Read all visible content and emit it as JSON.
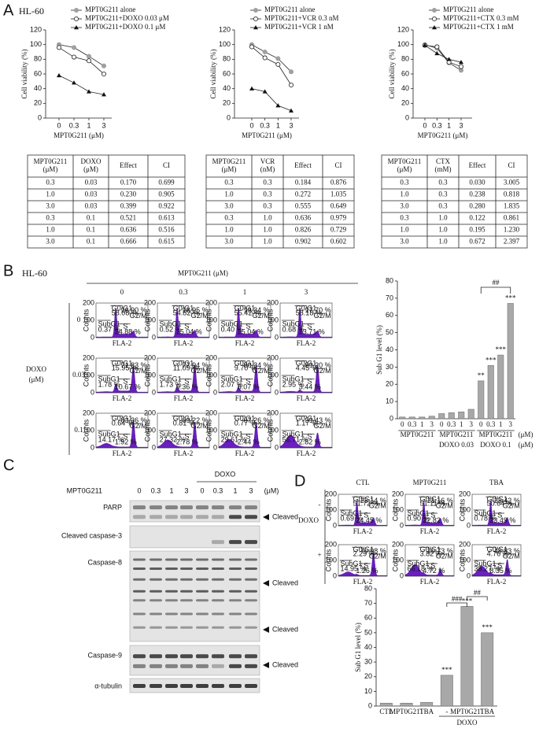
{
  "panel_labels": [
    "A",
    "B",
    "C",
    "D"
  ],
  "cell_line": "HL-60",
  "chart_data": [
    {
      "type": "line",
      "categories": [
        "0",
        "0.3",
        "1",
        "3"
      ],
      "xlabel": "MPT0G211 (μM)",
      "ylabel": "Cell viability (%)",
      "ylim": [
        0,
        120
      ],
      "yticks": [
        0,
        20,
        40,
        60,
        80,
        100,
        120
      ],
      "series": [
        {
          "name": "MPT0G211 alone",
          "color": "#a0a0a0",
          "marker": "circle",
          "values": [
            100,
            96,
            84,
            71
          ]
        },
        {
          "name": "MPT0G211+DOXO 0.03 μM",
          "color": "#333333",
          "marker": "open-circle",
          "values": [
            96,
            83,
            78,
            60
          ]
        },
        {
          "name": "MPT0G211+DOXO 0.1 μM",
          "color": "#111111",
          "marker": "triangle",
          "values": [
            58,
            48,
            36,
            32
          ]
        }
      ]
    },
    {
      "type": "line",
      "categories": [
        "0",
        "0.3",
        "1",
        "3"
      ],
      "xlabel": "MPT0G211 (μM)",
      "ylabel": "Cell viability (%)",
      "ylim": [
        0,
        120
      ],
      "yticks": [
        0,
        20,
        40,
        60,
        80,
        100,
        120
      ],
      "series": [
        {
          "name": "MPT0G211 alone",
          "color": "#a0a0a0",
          "marker": "circle",
          "values": [
            100,
            90,
            81,
            63
          ]
        },
        {
          "name": "MPT0G211+VCR 0.3 nM",
          "color": "#333333",
          "marker": "open-circle",
          "values": [
            97,
            82,
            73,
            45
          ]
        },
        {
          "name": "MPT0G211+VCR 1 nM",
          "color": "#111111",
          "marker": "triangle",
          "values": [
            40,
            36,
            17,
            10
          ]
        }
      ]
    },
    {
      "type": "line",
      "categories": [
        "0",
        "0.3",
        "1",
        "3"
      ],
      "xlabel": "MPT0G211 (μM)",
      "ylabel": "Cell viability (%)",
      "ylim": [
        0,
        120
      ],
      "yticks": [
        0,
        20,
        40,
        60,
        80,
        100,
        120
      ],
      "series": [
        {
          "name": "MPT0G211 alone",
          "color": "#a0a0a0",
          "marker": "circle",
          "values": [
            100,
            95,
            75,
            65
          ]
        },
        {
          "name": "MPT0G211+CTX  0.3 mM",
          "color": "#333333",
          "marker": "open-circle",
          "values": [
            99,
            97,
            76,
            70
          ]
        },
        {
          "name": "MPT0G211+CTX  1 mM",
          "color": "#111111",
          "marker": "triangle",
          "values": [
            99,
            88,
            80,
            76
          ]
        }
      ]
    },
    {
      "type": "bar",
      "ylabel": "Sub G1 level (%)",
      "color": "#a8a8a8",
      "categories": [
        "0",
        "0.3",
        "1",
        "3",
        "0",
        "0.3",
        "1",
        "3",
        "0",
        "0.3",
        "1",
        "3"
      ],
      "values": [
        1,
        1,
        1,
        1.5,
        3,
        3.5,
        4,
        5.5,
        22,
        31,
        37,
        67
      ],
      "significance": [
        null,
        null,
        null,
        null,
        null,
        null,
        null,
        null,
        "**",
        "***",
        "***",
        "***"
      ],
      "brackets": [
        "##"
      ],
      "ylim": [
        0,
        80
      ],
      "yticks": [
        0,
        10,
        20,
        30,
        40,
        50,
        60,
        70,
        80
      ],
      "group_labels": [
        "MPT0G211",
        "MPT0G211",
        "MPT0G211"
      ],
      "group_sublabels": [
        "DOXO 0.03",
        "DOXO 0.1"
      ],
      "unit_label": "(μM)"
    },
    {
      "type": "bar",
      "ylabel": "Sub G1 level (%)",
      "color": "#a8a8a8",
      "categories": [
        "CTL",
        "MPT0G211",
        "TBA",
        "-",
        "MPT0G211",
        "TBA"
      ],
      "values": [
        2,
        2,
        2.5,
        21,
        68,
        50
      ],
      "significance": [
        null,
        null,
        null,
        "***",
        "***",
        "***"
      ],
      "brackets": [
        "###",
        "##"
      ],
      "ylim": [
        0,
        80
      ],
      "yticks": [
        0,
        10,
        20,
        30,
        40,
        50,
        60,
        70,
        80
      ],
      "group_label": "DOXO"
    }
  ],
  "tables": [
    {
      "header": [
        [
          "MPT0G211",
          "(μM)"
        ],
        [
          "DOXO",
          "(μM)"
        ],
        [
          "Effect"
        ],
        [
          "CI"
        ]
      ],
      "rows": [
        [
          "0.3",
          "0.03",
          "0.170",
          "0.699"
        ],
        [
          "1.0",
          "0.03",
          "0.230",
          "0.905"
        ],
        [
          "3.0",
          "0.03",
          "0.399",
          "0.922"
        ],
        [
          "0.3",
          "0.1",
          "0.521",
          "0.613"
        ],
        [
          "1.0",
          "0.1",
          "0.636",
          "0.516"
        ],
        [
          "3.0",
          "0.1",
          "0.666",
          "0.615"
        ]
      ]
    },
    {
      "header": [
        [
          "MPT0G211",
          "(μM)"
        ],
        [
          "VCR",
          "(nM)"
        ],
        [
          "Effect"
        ],
        [
          "CI"
        ]
      ],
      "rows": [
        [
          "0.3",
          "0.3",
          "0.184",
          "0.876"
        ],
        [
          "1.0",
          "0.3",
          "0.272",
          "1.035"
        ],
        [
          "3.0",
          "0.3",
          "0.555",
          "0.649"
        ],
        [
          "0.3",
          "1.0",
          "0.636",
          "0.979"
        ],
        [
          "1.0",
          "1.0",
          "0.826",
          "0.729"
        ],
        [
          "3.0",
          "1.0",
          "0.902",
          "0.602"
        ]
      ]
    },
    {
      "header": [
        [
          "MPT0G211",
          "(μM)"
        ],
        [
          "CTX",
          "(mM)"
        ],
        [
          "Effect"
        ],
        [
          "CI"
        ]
      ],
      "rows": [
        [
          "0.3",
          "0.3",
          "0.030",
          "3.005"
        ],
        [
          "1.0",
          "0.3",
          "0.238",
          "0.818"
        ],
        [
          "3.0",
          "0.3",
          "0.280",
          "1.835"
        ],
        [
          "0.3",
          "1.0",
          "0.122",
          "0.861"
        ],
        [
          "1.0",
          "1.0",
          "0.195",
          "1.230"
        ],
        [
          "3.0",
          "1.0",
          "0.672",
          "2.397"
        ]
      ]
    }
  ],
  "flow": {
    "labels": {
      "counts": "Counts",
      "axis": "FLA-2",
      "ticks": [
        "200",
        "100",
        "0"
      ],
      "subg1": "SubG1",
      "g0g1": "G0/G1",
      "s": "S",
      "g2m": "G2/M"
    },
    "b": {
      "title": "MPT0G211 (μM)",
      "columns": [
        "0",
        "0.3",
        "1",
        "3"
      ],
      "row_title": [
        "DOXO",
        "(μM)"
      ],
      "rows": [
        "0",
        "0.03",
        "0.1"
      ],
      "plots": [
        [
          {
            "subg1": "0.37 %",
            "g0g1": "58.08 %",
            "s": "24.88 %",
            "g2m": "16.90 %"
          },
          {
            "subg1": "0.52 %",
            "g0g1": "54.82 %",
            "s": "25.04 %",
            "g2m": "18.95 %"
          },
          {
            "subg1": "0.40 %",
            "g0g1": "55.42 %",
            "s": "25.04 %",
            "g2m": "19.34 %"
          },
          {
            "subg1": "0.68 %",
            "g0g1": "58.18 %",
            "s": "23.71 %",
            "g2m": "17.70 %"
          }
        ],
        [
          {
            "subg1": "1.78 %",
            "g0g1": "15.95 %",
            "s": "10.67 %",
            "g2m": "71.83 %"
          },
          {
            "subg1": "1.73 %",
            "g0g1": "11.09 %",
            "s": "9.36 %",
            "g2m": "77.94 %"
          },
          {
            "subg1": "2.07 %",
            "g0g1": "9.70 %",
            "s": "8.07 %",
            "g2m": "80.34 %"
          },
          {
            "subg1": "2.95 %",
            "g0g1": "4.45 %",
            "s": "3.44 %",
            "g2m": "89.20 %"
          }
        ],
        [
          {
            "subg1": "14.17 %",
            "g0g1": "0.64 %",
            "s": "1.92 %",
            "g2m": "83.36 %"
          },
          {
            "subg1": "27.32 %",
            "g0g1": "0.81 %",
            "s": "2.78 %",
            "g2m": "69.22 %"
          },
          {
            "subg1": "29.61 %",
            "g0g1": "0.77 %",
            "s": "2.44 %",
            "g2m": "67.26 %"
          },
          {
            "subg1": "56.71 %",
            "g0g1": "1.17 %",
            "s": "2.82 %",
            "g2m": "39.43 %"
          }
        ]
      ]
    },
    "d": {
      "columns": [
        "CTL",
        "MPT0G211",
        "TBA"
      ],
      "row_title": "DOXO",
      "rows": [
        "-",
        "+"
      ],
      "plots": [
        [
          {
            "subg1": "0.69 %",
            "g0g1": "51.72 %",
            "s": "24.45 %",
            "g2m": "23.14 %"
          },
          {
            "subg1": "0.90 %",
            "g0g1": "51.11 %",
            "s": "22.82 %",
            "g2m": "21.16 %"
          },
          {
            "subg1": "0.78 %",
            "g0g1": "50.64 %",
            "s": "23.49 %",
            "g2m": "23.42 %"
          }
        ],
        [
          {
            "subg1": "14.95 %",
            "g0g1": "2.29 %",
            "s": "1.26 %",
            "g2m": "70.98 %"
          },
          {
            "subg1": "66.18 %",
            "g0g1": "3.82 %",
            "s": "4.72 %",
            "g2m": "20.73 %"
          },
          {
            "subg1": "38.27 %",
            "g0g1": "4.76 %",
            "s": "8.35 %",
            "g2m": "48.83 %"
          }
        ]
      ]
    }
  },
  "blot": {
    "treatment": "MPT0G211",
    "lanes": [
      "0",
      "0.3",
      "1",
      "3",
      "0",
      "0.3",
      "1",
      "3"
    ],
    "group": "DOXO",
    "unit": "(μM)",
    "proteins": [
      "PARP",
      "Cleaved caspase-3",
      "Caspase-8",
      "Caspase-9",
      "α-tubulin"
    ],
    "arrow": "Cleaved"
  }
}
